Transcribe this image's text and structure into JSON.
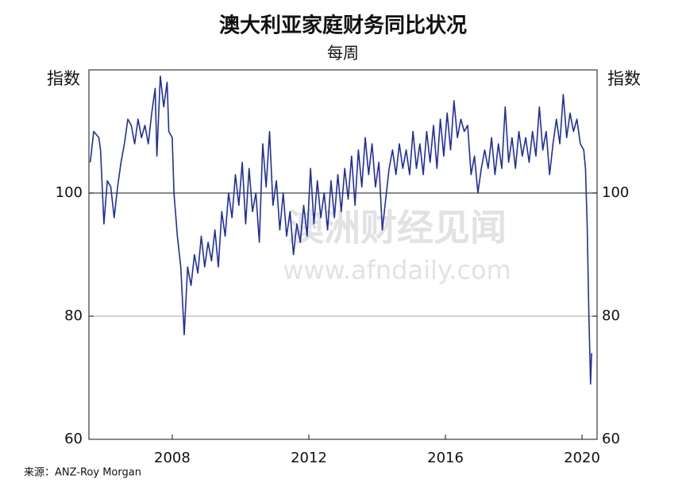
{
  "chart_data": {
    "type": "line",
    "title": "澳大利亚家庭财务同比状况",
    "subtitle": "每周",
    "y_label": "指数",
    "y2_label": "指数",
    "source": "来源：ANZ-Roy Morgan",
    "watermark": [
      "澳洲财经见闻",
      "www.afndaily.com"
    ],
    "xlim": [
      2005.56,
      2020.44
    ],
    "xticks": [
      2008,
      2012,
      2016,
      2020
    ],
    "ylim": [
      60,
      120
    ],
    "yticks": [
      60,
      80,
      100
    ],
    "y2lim": [
      60,
      120
    ],
    "y2ticks": [
      60,
      80,
      100
    ],
    "hlines": [
      {
        "value": 80,
        "color": "#bbbbbb"
      },
      {
        "value": 100,
        "color": "#444444"
      }
    ],
    "series": [
      {
        "color": "#1f2fa0",
        "x": [
          2005.6,
          2005.7,
          2005.85,
          2005.9,
          2006.0,
          2006.1,
          2006.2,
          2006.3,
          2006.4,
          2006.5,
          2006.6,
          2006.7,
          2006.8,
          2006.9,
          2007.0,
          2007.1,
          2007.2,
          2007.3,
          2007.4,
          2007.5,
          2007.55,
          2007.65,
          2007.75,
          2007.85,
          2007.9,
          2008.0,
          2008.05,
          2008.15,
          2008.25,
          2008.35,
          2008.45,
          2008.55,
          2008.65,
          2008.75,
          2008.85,
          2008.95,
          2009.05,
          2009.15,
          2009.25,
          2009.35,
          2009.45,
          2009.55,
          2009.65,
          2009.75,
          2009.85,
          2009.95,
          2010.05,
          2010.15,
          2010.25,
          2010.35,
          2010.45,
          2010.55,
          2010.65,
          2010.75,
          2010.85,
          2010.95,
          2011.05,
          2011.15,
          2011.25,
          2011.35,
          2011.45,
          2011.55,
          2011.65,
          2011.75,
          2011.85,
          2011.95,
          2012.05,
          2012.15,
          2012.25,
          2012.35,
          2012.45,
          2012.55,
          2012.65,
          2012.75,
          2012.85,
          2012.95,
          2013.05,
          2013.15,
          2013.25,
          2013.35,
          2013.45,
          2013.55,
          2013.65,
          2013.75,
          2013.85,
          2013.95,
          2014.05,
          2014.15,
          2014.25,
          2014.35,
          2014.45,
          2014.55,
          2014.65,
          2014.75,
          2014.85,
          2014.95,
          2015.05,
          2015.15,
          2015.25,
          2015.35,
          2015.45,
          2015.55,
          2015.65,
          2015.75,
          2015.85,
          2015.95,
          2016.05,
          2016.15,
          2016.25,
          2016.35,
          2016.45,
          2016.55,
          2016.65,
          2016.75,
          2016.85,
          2016.95,
          2017.05,
          2017.15,
          2017.25,
          2017.35,
          2017.45,
          2017.55,
          2017.65,
          2017.75,
          2017.85,
          2017.95,
          2018.05,
          2018.15,
          2018.25,
          2018.35,
          2018.45,
          2018.55,
          2018.65,
          2018.75,
          2018.85,
          2018.95,
          2019.05,
          2019.15,
          2019.25,
          2019.35,
          2019.45,
          2019.55,
          2019.65,
          2019.75,
          2019.85,
          2019.95,
          2020.05,
          2020.1,
          2020.15,
          2020.2,
          2020.25,
          2020.28
        ],
        "values": [
          105,
          110,
          109,
          107,
          95,
          102,
          101,
          96,
          101,
          105,
          108,
          112,
          111,
          108,
          112,
          109,
          111,
          108,
          113,
          117,
          106,
          119,
          114,
          118,
          110,
          109,
          100,
          93,
          88,
          77,
          88,
          85,
          90,
          87,
          93,
          88,
          92,
          89,
          94,
          88,
          97,
          93,
          100,
          96,
          103,
          98,
          105,
          95,
          104,
          97,
          100,
          92,
          108,
          101,
          110,
          98,
          102,
          94,
          100,
          93,
          97,
          90,
          95,
          92,
          98,
          93,
          104,
          95,
          102,
          96,
          100,
          94,
          102,
          96,
          103,
          97,
          104,
          99,
          106,
          98,
          107,
          101,
          109,
          103,
          108,
          101,
          105,
          94,
          99,
          104,
          107,
          103,
          108,
          104,
          107,
          103,
          110,
          104,
          108,
          103,
          110,
          105,
          111,
          104,
          112,
          106,
          113,
          107,
          115,
          109,
          112,
          110,
          111,
          103,
          106,
          100,
          104,
          107,
          104,
          109,
          103,
          108,
          104,
          114,
          105,
          109,
          104,
          110,
          106,
          109,
          105,
          110,
          106,
          114,
          107,
          110,
          103,
          108,
          112,
          108,
          116,
          109,
          113,
          110,
          112,
          108,
          107,
          104,
          95,
          80,
          69,
          74
        ]
      }
    ]
  }
}
